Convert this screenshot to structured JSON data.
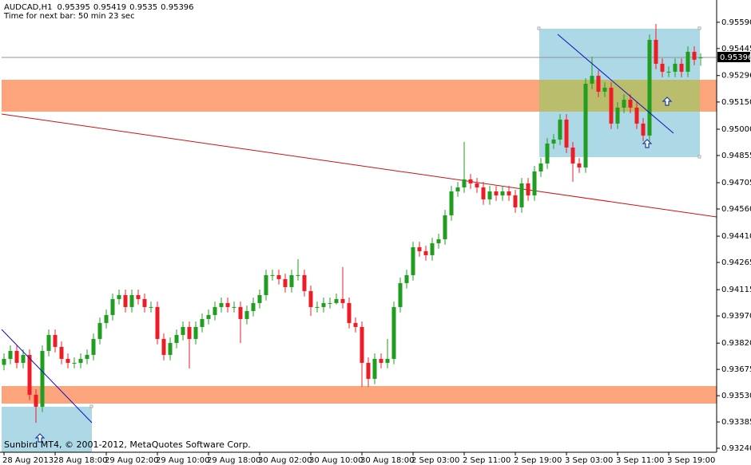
{
  "chart_data": {
    "type": "candlestick",
    "title": "AUDCAD,H1",
    "subtitle": "Time for next bar: 50 min 23 sec",
    "footer": "Sunbird MT4, © 2001-2012, MetaQuotes Software Corp.",
    "up_color": "#1f9e1f",
    "down_color": "#ee1c25",
    "ylim": [
      0.93218,
      0.95704
    ],
    "yticks": [
      {
        "value": 0.9559,
        "label": "0.95590"
      },
      0.95445,
      0.95296,
      {
        "value": 0.9515,
        "label": "0.95150"
      },
      {
        "value": 0.95,
        "label": "0.95000"
      },
      0.94855,
      0.94705,
      {
        "value": 0.9456,
        "label": "0.94560"
      },
      {
        "value": 0.9441,
        "label": "0.94410"
      },
      0.94265,
      0.94115,
      {
        "value": 0.9397,
        "label": "0.93970"
      },
      {
        "value": 0.9382,
        "label": "0.93820"
      },
      0.93675,
      {
        "value": 0.9353,
        "label": "0.93530"
      },
      0.93385,
      {
        "value": 0.9324,
        "label": "0.93240"
      }
    ],
    "categories": [
      "28 Aug 2013",
      null,
      null,
      null,
      null,
      null,
      null,
      null,
      "28 Aug 18:00",
      null,
      null,
      null,
      null,
      null,
      null,
      null,
      "29 Aug 02:00",
      null,
      null,
      null,
      null,
      null,
      null,
      null,
      "29 Aug 10:00",
      null,
      null,
      null,
      null,
      null,
      null,
      null,
      "29 Aug 18:00",
      null,
      null,
      null,
      null,
      null,
      null,
      null,
      "30 Aug 02:00",
      null,
      null,
      null,
      null,
      null,
      null,
      null,
      "30 Aug 10:00",
      null,
      null,
      null,
      null,
      null,
      null,
      null,
      "30 Aug 18:00",
      null,
      null,
      null,
      null,
      null,
      null,
      null,
      "2 Sep 03:00",
      null,
      null,
      null,
      null,
      null,
      null,
      null,
      "2 Sep 11:00",
      null,
      null,
      null,
      null,
      null,
      null,
      null,
      "2 Sep 19:00",
      null,
      null,
      null,
      null,
      null,
      null,
      null,
      "3 Sep 03:00",
      null,
      null,
      null,
      null,
      null,
      null,
      null,
      "3 Sep 11:00",
      null,
      null,
      null,
      null,
      null,
      null,
      null,
      "3 Sep 19:00",
      null,
      null,
      null,
      null,
      null
    ],
    "open": [
      0.937,
      0.93733,
      0.93777,
      0.93711,
      0.93755,
      0.93535,
      0.93469,
      0.93777,
      0.93865,
      0.93799,
      0.93733,
      0.93711,
      0.93711,
      0.93733,
      0.93755,
      0.93843,
      0.93931,
      0.93975,
      0.94063,
      0.94085,
      0.94019,
      0.94085,
      0.94063,
      0.94019,
      0.94019,
      0.93843,
      0.93755,
      0.93821,
      0.93865,
      0.93909,
      0.93843,
      0.93909,
      0.93953,
      0.93975,
      0.94019,
      0.94041,
      0.94019,
      0.94019,
      0.93953,
      0.93997,
      0.94041,
      0.94085,
      0.94195,
      0.94195,
      0.94173,
      0.94129,
      0.94195,
      0.94195,
      0.94107,
      0.94019,
      0.94019,
      0.94041,
      0.94041,
      0.94063,
      0.94041,
      0.93931,
      0.93909,
      0.93711,
      0.93623,
      0.93733,
      0.93711,
      0.93733,
      0.94019,
      0.94151,
      0.94195,
      0.94349,
      0.94327,
      0.94305,
      0.94371,
      0.94393,
      0.94525,
      0.94657,
      0.94679,
      0.94723,
      0.94701,
      0.94679,
      0.94613,
      0.94657,
      0.94635,
      0.94657,
      0.94635,
      0.94569,
      0.94701,
      0.94635,
      0.94767,
      0.94811,
      0.94921,
      0.94943,
      0.95053,
      0.94899,
      0.94811,
      0.94789,
      0.95251,
      0.95295,
      0.95207,
      0.95229,
      0.95031,
      0.95119,
      0.95163,
      0.95119,
      0.95031,
      0.94965,
      0.95493,
      0.95361,
      0.95317,
      0.95317,
      0.95361,
      0.95317,
      0.95427,
      0.95395
    ],
    "high": [
      0.93763,
      0.93807,
      0.93807,
      0.93785,
      0.93785,
      0.93565,
      0.93807,
      0.93895,
      0.93895,
      0.93829,
      0.93763,
      0.93741,
      0.93763,
      0.93785,
      0.93873,
      0.93961,
      0.94005,
      0.94093,
      0.94115,
      0.94115,
      0.94115,
      0.94115,
      0.94093,
      0.94049,
      0.94049,
      0.93873,
      0.93851,
      0.93895,
      0.93939,
      0.93939,
      0.93939,
      0.93983,
      0.94005,
      0.94049,
      0.94071,
      0.94071,
      0.94049,
      0.94049,
      0.94027,
      0.94071,
      0.94115,
      0.94225,
      0.94225,
      0.94225,
      0.94203,
      0.94225,
      0.94283,
      0.94225,
      0.94137,
      0.94049,
      0.94071,
      0.94071,
      0.94093,
      0.9424,
      0.94071,
      0.93961,
      0.93939,
      0.93741,
      0.93763,
      0.93763,
      0.93843,
      0.94049,
      0.94181,
      0.94225,
      0.94379,
      0.94379,
      0.94357,
      0.94401,
      0.94423,
      0.94555,
      0.94687,
      0.94709,
      0.9493,
      0.94753,
      0.94731,
      0.94709,
      0.94687,
      0.94687,
      0.94687,
      0.94687,
      0.94665,
      0.94731,
      0.94731,
      0.94797,
      0.94841,
      0.94951,
      0.94973,
      0.95083,
      0.95083,
      0.94929,
      0.94841,
      0.95281,
      0.954,
      0.95325,
      0.95259,
      0.95259,
      0.95149,
      0.95193,
      0.95193,
      0.95149,
      0.95061,
      0.95523,
      0.95581,
      0.95391,
      0.95347,
      0.95391,
      0.95391,
      0.95457,
      0.95457,
      0.95419
    ],
    "low": [
      0.9367,
      0.93703,
      0.93681,
      0.93681,
      0.93505,
      0.9338,
      0.93439,
      0.93747,
      0.93769,
      0.93703,
      0.93681,
      0.93681,
      0.93681,
      0.93703,
      0.93725,
      0.93813,
      0.93901,
      0.93945,
      0.94033,
      0.93989,
      0.93989,
      0.94033,
      0.93989,
      0.93989,
      0.93813,
      0.93725,
      0.93725,
      0.93791,
      0.93835,
      0.9368,
      0.93813,
      0.93879,
      0.93923,
      0.93945,
      0.93989,
      0.93989,
      0.93989,
      0.9382,
      0.93923,
      0.93967,
      0.94011,
      0.94055,
      0.94165,
      0.94143,
      0.94099,
      0.94099,
      0.94165,
      0.94077,
      0.9397,
      0.93989,
      0.93989,
      0.94011,
      0.94033,
      0.94011,
      0.93901,
      0.93879,
      0.93579,
      0.93579,
      0.93593,
      0.93681,
      0.93681,
      0.93703,
      0.93989,
      0.94121,
      0.94165,
      0.94297,
      0.94275,
      0.94275,
      0.94341,
      0.94363,
      0.94495,
      0.94627,
      0.94649,
      0.94671,
      0.94649,
      0.94583,
      0.94583,
      0.94605,
      0.94605,
      0.94605,
      0.94539,
      0.94539,
      0.94605,
      0.94605,
      0.94737,
      0.94781,
      0.94891,
      0.94913,
      0.94869,
      0.9471,
      0.94759,
      0.94759,
      0.95221,
      0.95177,
      0.95177,
      0.95001,
      0.95001,
      0.95089,
      0.95089,
      0.95001,
      0.94935,
      0.94935,
      0.95331,
      0.95287,
      0.95287,
      0.95287,
      0.95287,
      0.95287,
      0.95353,
      0.9535
    ],
    "close": [
      0.93733,
      0.93777,
      0.93711,
      0.93755,
      0.93535,
      0.93469,
      0.93777,
      0.93865,
      0.93799,
      0.93733,
      0.93711,
      0.93711,
      0.93733,
      0.93755,
      0.93843,
      0.93931,
      0.93975,
      0.94063,
      0.94085,
      0.94019,
      0.94085,
      0.94063,
      0.94019,
      0.94019,
      0.93843,
      0.93755,
      0.93821,
      0.93865,
      0.93909,
      0.93843,
      0.93909,
      0.93953,
      0.93975,
      0.94019,
      0.94041,
      0.94019,
      0.94019,
      0.93953,
      0.93997,
      0.94041,
      0.94085,
      0.94195,
      0.94195,
      0.94173,
      0.94129,
      0.94195,
      0.94195,
      0.94107,
      0.94019,
      0.94019,
      0.94041,
      0.94041,
      0.94063,
      0.94041,
      0.93931,
      0.93909,
      0.93711,
      0.93623,
      0.93733,
      0.93711,
      0.93733,
      0.94019,
      0.94151,
      0.94195,
      0.94349,
      0.94327,
      0.94305,
      0.94371,
      0.94393,
      0.94525,
      0.94657,
      0.94679,
      0.94723,
      0.94701,
      0.94679,
      0.94613,
      0.94657,
      0.94635,
      0.94657,
      0.94635,
      0.94569,
      0.94701,
      0.94635,
      0.94767,
      0.94811,
      0.94921,
      0.94943,
      0.95053,
      0.94899,
      0.94811,
      0.94789,
      0.95251,
      0.95295,
      0.95207,
      0.95229,
      0.95031,
      0.95119,
      0.95163,
      0.95119,
      0.95031,
      0.94965,
      0.95493,
      0.95361,
      0.95317,
      0.95317,
      0.95361,
      0.95317,
      0.95427,
      0.95383,
      0.95396
    ]
  }
}
